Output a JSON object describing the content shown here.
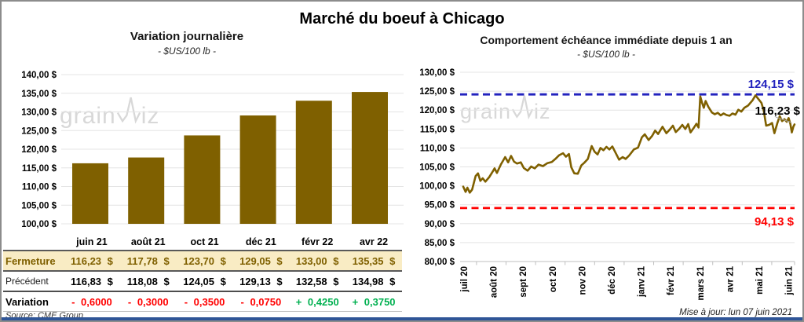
{
  "title": "Marché du boeuf à Chicago",
  "source": "Source: CME Group",
  "updated": "Mise à jour: lun 07 juin 2021",
  "watermark": {
    "text": "grainwiz",
    "part1": "grain",
    "part2": "iz"
  },
  "colors": {
    "gold": "#7F6000",
    "close_row_bg": "#F9ECC4",
    "negative_red": "#FF0000",
    "positive_green": "#00B050",
    "resistance_blue": "#2222BE",
    "support_red": "#FF0000",
    "gridline": "#E4E4E4",
    "axis": "#BFBFBF",
    "watermark_gray": "#D8D8D8",
    "bottom_bar_blue": "#2F5597",
    "frame_border": "#8C8C8C"
  },
  "table": {
    "columns": [
      "juin 21",
      "août 21",
      "oct 21",
      "déc 21",
      "févr 22",
      "avr 22"
    ],
    "rows": [
      {
        "label": "Fermeture",
        "style": "close",
        "values": [
          "116,23 $",
          "117,78 $",
          "123,70 $",
          "129,05 $",
          "133,00 $",
          "135,35 $"
        ]
      },
      {
        "label": "Précédent",
        "style": "prev",
        "values": [
          "116,83 $",
          "118,08 $",
          "124,05 $",
          "129,13 $",
          "132,58 $",
          "134,98 $"
        ]
      },
      {
        "label": "Variation",
        "style": "var",
        "values": [
          {
            "text": "- 0,6000",
            "dir": "down"
          },
          {
            "text": "- 0,3000",
            "dir": "down"
          },
          {
            "text": "- 0,3500",
            "dir": "down"
          },
          {
            "text": "- 0,0750",
            "dir": "down"
          },
          {
            "text": "+ 0,4250",
            "dir": "up"
          },
          {
            "text": "+ 0,3750",
            "dir": "up"
          }
        ]
      }
    ]
  },
  "chart_data": [
    {
      "type": "bar",
      "title": "Variation journalière",
      "subtitle": "- $US/100 lb -",
      "categories": [
        "juin 21",
        "août 21",
        "oct 21",
        "déc 21",
        "févr 22",
        "avr 22"
      ],
      "values": [
        116.23,
        117.78,
        123.7,
        129.05,
        133.0,
        135.35
      ],
      "ylim": [
        100,
        140
      ],
      "ytick_step": 5,
      "ytick_labels": [
        "140,00 $",
        "135,00 $",
        "130,00 $",
        "125,00 $",
        "120,00 $",
        "115,00 $",
        "110,00 $",
        "105,00 $",
        "100,00 $"
      ],
      "bar_color": "#7F6000",
      "grid": true,
      "legend": "none"
    },
    {
      "type": "line",
      "title": "Comportement échéance immédiate depuis 1 an",
      "subtitle": "- $US/100 lb -",
      "x_categories": [
        "juil 20",
        "août 20",
        "sept 20",
        "oct 20",
        "nov 20",
        "déc 20",
        "janv 21",
        "févr 21",
        "mars 21",
        "avr 21",
        "mai 21",
        "juin 21"
      ],
      "ylim": [
        80,
        130
      ],
      "ytick_step": 5,
      "ytick_labels": [
        "130,00 $",
        "125,00 $",
        "120,00 $",
        "115,00 $",
        "110,00 $",
        "105,00 $",
        "100,00 $",
        "95,00 $",
        "90,00 $",
        "85,00 $",
        "80,00 $"
      ],
      "grid": true,
      "legend": "none",
      "series": [
        {
          "name": "échéance immédiate",
          "color": "#7F6000",
          "points": [
            [
              0,
              99.8
            ],
            [
              0.08,
              98.4
            ],
            [
              0.14,
              99.5
            ],
            [
              0.22,
              98.2
            ],
            [
              0.3,
              99.0
            ],
            [
              0.42,
              102.6
            ],
            [
              0.5,
              103.3
            ],
            [
              0.58,
              101.3
            ],
            [
              0.66,
              102.0
            ],
            [
              0.75,
              101.1
            ],
            [
              0.88,
              102.3
            ],
            [
              1.0,
              103.8
            ],
            [
              1.06,
              104.6
            ],
            [
              1.14,
              103.4
            ],
            [
              1.28,
              105.7
            ],
            [
              1.42,
              107.6
            ],
            [
              1.52,
              106.2
            ],
            [
              1.62,
              107.9
            ],
            [
              1.72,
              106.4
            ],
            [
              1.82,
              105.9
            ],
            [
              1.95,
              106.2
            ],
            [
              2.05,
              104.7
            ],
            [
              2.18,
              104.0
            ],
            [
              2.3,
              105.1
            ],
            [
              2.42,
              104.6
            ],
            [
              2.55,
              105.6
            ],
            [
              2.7,
              105.2
            ],
            [
              2.85,
              106.0
            ],
            [
              3.0,
              106.3
            ],
            [
              3.12,
              107.1
            ],
            [
              3.25,
              108.1
            ],
            [
              3.38,
              108.6
            ],
            [
              3.48,
              107.7
            ],
            [
              3.58,
              108.4
            ],
            [
              3.66,
              104.9
            ],
            [
              3.76,
              103.3
            ],
            [
              3.88,
              103.2
            ],
            [
              4.0,
              105.4
            ],
            [
              4.1,
              106.1
            ],
            [
              4.22,
              107.1
            ],
            [
              4.35,
              110.5
            ],
            [
              4.45,
              109.0
            ],
            [
              4.55,
              108.3
            ],
            [
              4.65,
              110.0
            ],
            [
              4.75,
              109.4
            ],
            [
              4.85,
              110.3
            ],
            [
              4.95,
              109.6
            ],
            [
              5.05,
              110.4
            ],
            [
              5.15,
              108.9
            ],
            [
              5.28,
              106.9
            ],
            [
              5.4,
              107.6
            ],
            [
              5.5,
              107.1
            ],
            [
              5.62,
              108.0
            ],
            [
              5.78,
              109.6
            ],
            [
              5.92,
              110.1
            ],
            [
              6.05,
              112.8
            ],
            [
              6.15,
              113.6
            ],
            [
              6.28,
              112.1
            ],
            [
              6.4,
              113.2
            ],
            [
              6.5,
              114.6
            ],
            [
              6.6,
              113.7
            ],
            [
              6.75,
              115.6
            ],
            [
              6.88,
              113.9
            ],
            [
              7.0,
              114.9
            ],
            [
              7.1,
              115.9
            ],
            [
              7.2,
              114.2
            ],
            [
              7.32,
              115.1
            ],
            [
              7.42,
              116.1
            ],
            [
              7.52,
              115.0
            ],
            [
              7.62,
              116.3
            ],
            [
              7.7,
              114.1
            ],
            [
              7.8,
              115.2
            ],
            [
              7.9,
              116.4
            ],
            [
              7.97,
              115.4
            ],
            [
              8.03,
              123.6
            ],
            [
              8.09,
              121.9
            ],
            [
              8.15,
              120.6
            ],
            [
              8.21,
              122.4
            ],
            [
              8.3,
              120.9
            ],
            [
              8.42,
              119.4
            ],
            [
              8.52,
              118.9
            ],
            [
              8.62,
              119.3
            ],
            [
              8.72,
              118.6
            ],
            [
              8.82,
              119.1
            ],
            [
              8.92,
              118.7
            ],
            [
              9.02,
              118.5
            ],
            [
              9.12,
              119.1
            ],
            [
              9.22,
              118.8
            ],
            [
              9.32,
              120.1
            ],
            [
              9.42,
              119.6
            ],
            [
              9.52,
              120.6
            ],
            [
              9.65,
              121.2
            ],
            [
              9.8,
              122.6
            ],
            [
              9.9,
              123.9
            ],
            [
              10.0,
              122.9
            ],
            [
              10.1,
              121.9
            ],
            [
              10.18,
              119.8
            ],
            [
              10.26,
              115.9
            ],
            [
              10.36,
              116.1
            ],
            [
              10.46,
              116.6
            ],
            [
              10.54,
              113.9
            ],
            [
              10.64,
              116.6
            ],
            [
              10.72,
              118.4
            ],
            [
              10.8,
              117.1
            ],
            [
              10.88,
              117.6
            ],
            [
              10.96,
              116.9
            ],
            [
              11.02,
              117.9
            ],
            [
              11.08,
              116.4
            ],
            [
              11.13,
              114.1
            ],
            [
              11.18,
              115.6
            ],
            [
              11.22,
              116.23
            ]
          ]
        }
      ],
      "ref_lines": [
        {
          "value": 124.15,
          "label": "124,15 $",
          "color": "#2222BE",
          "label_pos": "above"
        },
        {
          "value": 94.13,
          "label": "94,13 $",
          "color": "#FF0000",
          "label_pos": "below"
        }
      ],
      "last_point_label": {
        "value": 116.23,
        "text": "116,23 $"
      }
    }
  ]
}
